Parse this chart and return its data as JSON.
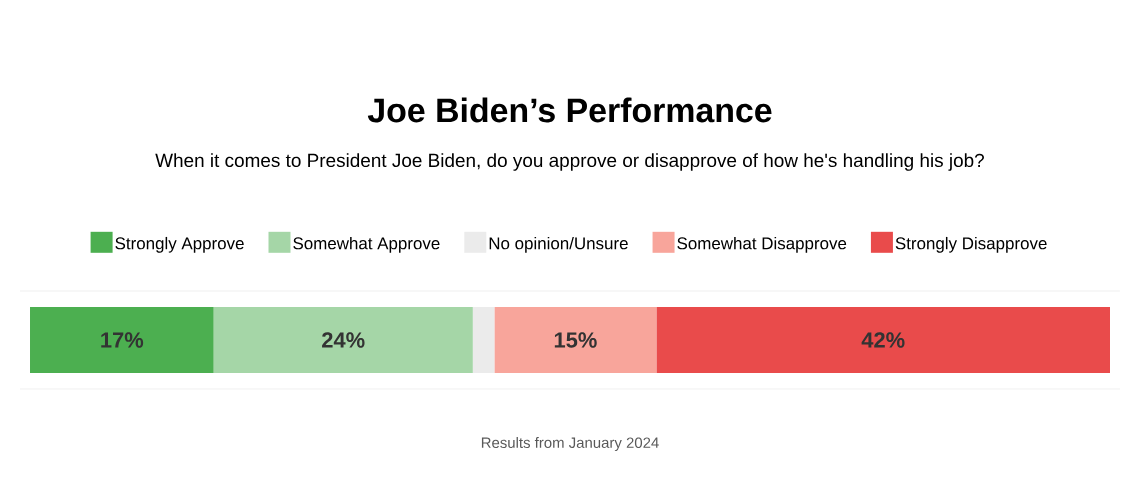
{
  "chart_data": {
    "type": "bar",
    "orientation": "horizontal",
    "stacked": true,
    "title": "Joe Biden’s Performance",
    "subtitle": "When it comes to President Joe Biden, do you approve or disapprove of how he's handling his job?",
    "categories": [
      null
    ],
    "tick_labels": false,
    "legend": "top",
    "series": [
      {
        "name": "Strongly Approve",
        "color": "#4caf50",
        "values": [
          17
        ],
        "value_labels": [
          "17%"
        ]
      },
      {
        "name": "Somewhat Approve",
        "color": "#a5d6a7",
        "values": [
          24
        ],
        "value_labels": [
          "24%"
        ]
      },
      {
        "name": "No opinion/Unsure",
        "color": "#ebebeb",
        "values": [
          2
        ],
        "value_labels": [
          null
        ]
      },
      {
        "name": "Somewhat Disapprove",
        "color": "#f8a59b",
        "values": [
          15
        ],
        "value_labels": [
          "15%"
        ]
      },
      {
        "name": "Strongly Disapprove",
        "color": "#e94b4b",
        "values": [
          42
        ],
        "value_labels": [
          "42%"
        ]
      }
    ],
    "annotations": [
      "Results from January 2024"
    ]
  }
}
